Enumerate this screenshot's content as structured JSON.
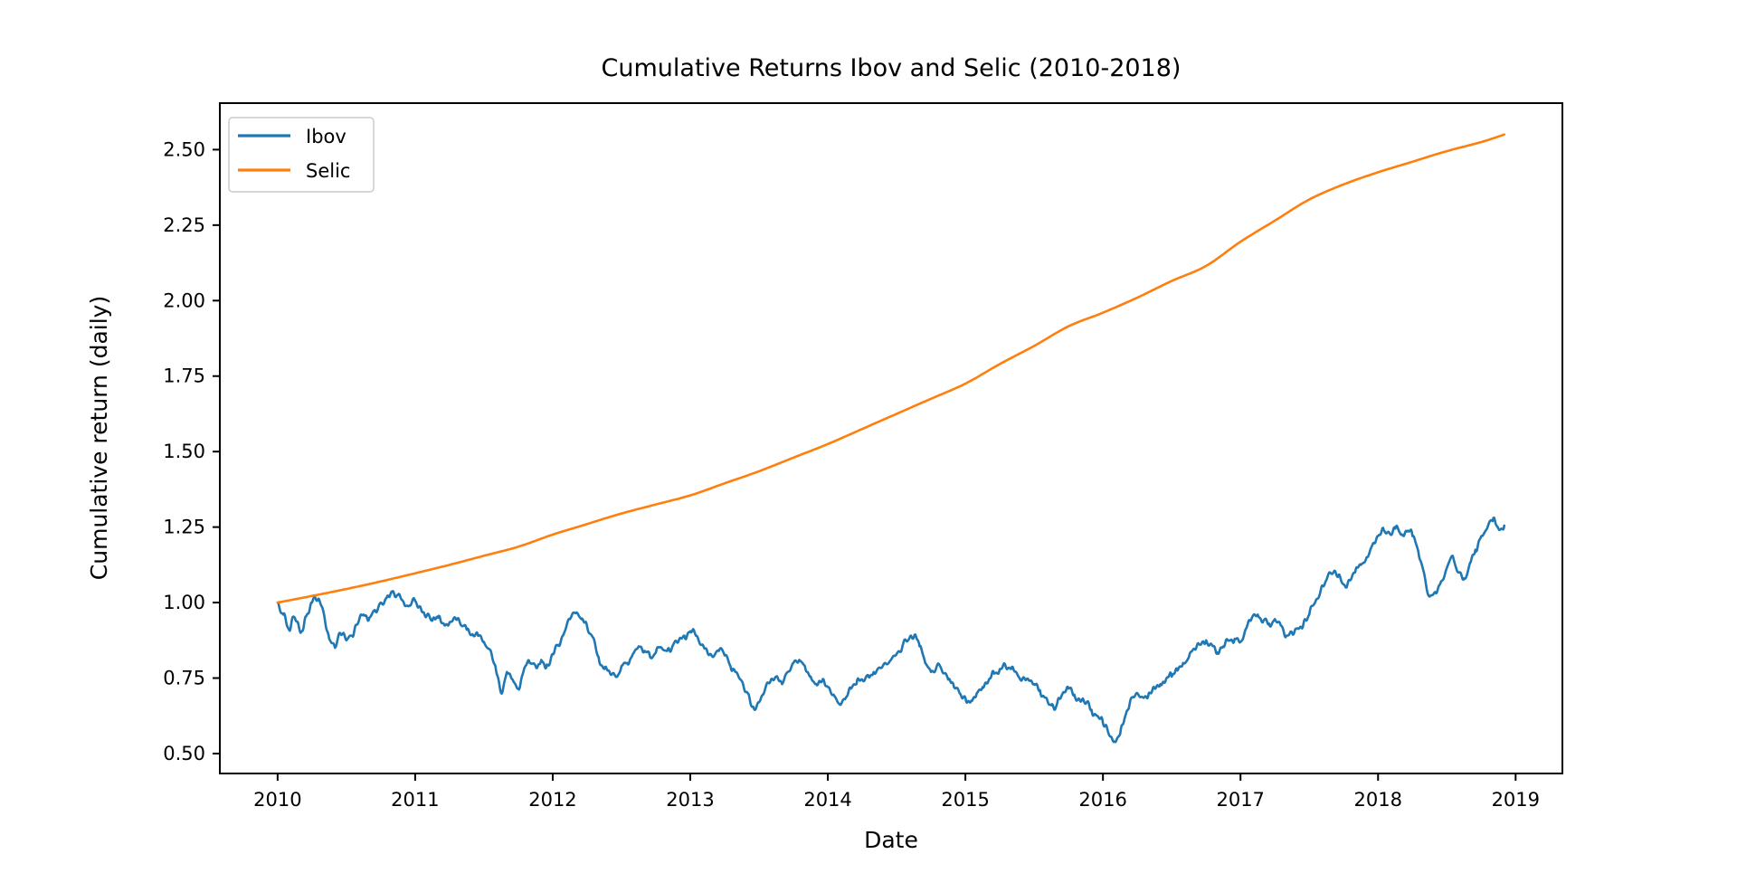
{
  "figure": {
    "background": "#ffffff",
    "spine_color": "#000000"
  },
  "chart_data": {
    "type": "line",
    "title": "Cumulative Returns Ibov and Selic (2010-2018)",
    "xlabel": "Date",
    "ylabel": "Cumulative return (daily)",
    "grid": false,
    "legend_position": "upper left",
    "xlim": [
      2009.58,
      2019.34
    ],
    "ylim": [
      0.434,
      2.654
    ],
    "x_ticks": [
      2010,
      2011,
      2012,
      2013,
      2014,
      2015,
      2016,
      2017,
      2018,
      2019
    ],
    "y_ticks": [
      0.5,
      0.75,
      1.0,
      1.25,
      1.5,
      1.75,
      2.0,
      2.25,
      2.5
    ],
    "series": [
      {
        "name": "Ibov",
        "color": "#1f77b4",
        "style": "noisy-daily",
        "x": [
          2010.0,
          2010.042,
          2010.083,
          2010.125,
          2010.167,
          2010.208,
          2010.25,
          2010.292,
          2010.333,
          2010.375,
          2010.417,
          2010.458,
          2010.5,
          2010.542,
          2010.583,
          2010.625,
          2010.667,
          2010.708,
          2010.75,
          2010.792,
          2010.833,
          2010.875,
          2010.917,
          2010.958,
          2011.0,
          2011.042,
          2011.083,
          2011.125,
          2011.167,
          2011.208,
          2011.25,
          2011.292,
          2011.333,
          2011.375,
          2011.417,
          2011.458,
          2011.5,
          2011.542,
          2011.583,
          2011.625,
          2011.667,
          2011.708,
          2011.75,
          2011.792,
          2011.833,
          2011.875,
          2011.917,
          2011.958,
          2012.0,
          2012.042,
          2012.083,
          2012.125,
          2012.167,
          2012.208,
          2012.25,
          2012.292,
          2012.333,
          2012.375,
          2012.417,
          2012.458,
          2012.5,
          2012.542,
          2012.583,
          2012.625,
          2012.667,
          2012.708,
          2012.75,
          2012.792,
          2012.833,
          2012.875,
          2012.917,
          2012.958,
          2013.0,
          2013.042,
          2013.083,
          2013.125,
          2013.167,
          2013.208,
          2013.25,
          2013.292,
          2013.333,
          2013.375,
          2013.417,
          2013.458,
          2013.5,
          2013.542,
          2013.583,
          2013.625,
          2013.667,
          2013.708,
          2013.75,
          2013.792,
          2013.833,
          2013.875,
          2013.917,
          2013.958,
          2014.0,
          2014.042,
          2014.083,
          2014.125,
          2014.167,
          2014.208,
          2014.25,
          2014.292,
          2014.333,
          2014.375,
          2014.417,
          2014.458,
          2014.5,
          2014.542,
          2014.583,
          2014.625,
          2014.667,
          2014.708,
          2014.75,
          2014.792,
          2014.833,
          2014.875,
          2014.917,
          2014.958,
          2015.0,
          2015.042,
          2015.083,
          2015.125,
          2015.167,
          2015.208,
          2015.25,
          2015.292,
          2015.333,
          2015.375,
          2015.417,
          2015.458,
          2015.5,
          2015.542,
          2015.583,
          2015.625,
          2015.667,
          2015.708,
          2015.75,
          2015.792,
          2015.833,
          2015.875,
          2015.917,
          2015.958,
          2016.0,
          2016.042,
          2016.083,
          2016.125,
          2016.167,
          2016.208,
          2016.25,
          2016.292,
          2016.333,
          2016.375,
          2016.417,
          2016.458,
          2016.5,
          2016.542,
          2016.583,
          2016.625,
          2016.667,
          2016.708,
          2016.75,
          2016.792,
          2016.833,
          2016.875,
          2016.917,
          2016.958,
          2017.0,
          2017.042,
          2017.083,
          2017.125,
          2017.167,
          2017.208,
          2017.25,
          2017.292,
          2017.333,
          2017.375,
          2017.417,
          2017.458,
          2017.5,
          2017.542,
          2017.583,
          2017.625,
          2017.667,
          2017.708,
          2017.75,
          2017.792,
          2017.833,
          2017.875,
          2017.917,
          2017.958,
          2018.0,
          2018.042,
          2018.083,
          2018.125,
          2018.167,
          2018.208,
          2018.25,
          2018.292,
          2018.333,
          2018.375,
          2018.417,
          2018.458,
          2018.5,
          2018.542,
          2018.583,
          2018.625,
          2018.667,
          2018.708,
          2018.75,
          2018.792,
          2018.833,
          2018.875,
          2018.917
        ],
        "y": [
          1.0,
          0.96,
          0.91,
          0.95,
          0.9,
          0.955,
          1.0,
          1.01,
          0.97,
          0.88,
          0.85,
          0.895,
          0.875,
          0.89,
          0.93,
          0.96,
          0.95,
          0.975,
          1.0,
          1.015,
          1.035,
          1.025,
          1.0,
          0.99,
          1.005,
          0.98,
          0.955,
          0.94,
          0.95,
          0.93,
          0.935,
          0.95,
          0.925,
          0.91,
          0.895,
          0.89,
          0.87,
          0.845,
          0.79,
          0.7,
          0.77,
          0.745,
          0.715,
          0.78,
          0.8,
          0.79,
          0.81,
          0.795,
          0.83,
          0.86,
          0.9,
          0.945,
          0.965,
          0.945,
          0.92,
          0.885,
          0.82,
          0.78,
          0.765,
          0.755,
          0.79,
          0.8,
          0.83,
          0.855,
          0.84,
          0.82,
          0.835,
          0.85,
          0.84,
          0.86,
          0.875,
          0.89,
          0.905,
          0.89,
          0.86,
          0.835,
          0.82,
          0.84,
          0.825,
          0.79,
          0.77,
          0.74,
          0.7,
          0.655,
          0.67,
          0.71,
          0.74,
          0.755,
          0.73,
          0.77,
          0.8,
          0.81,
          0.79,
          0.755,
          0.73,
          0.74,
          0.72,
          0.695,
          0.665,
          0.68,
          0.715,
          0.73,
          0.745,
          0.76,
          0.77,
          0.785,
          0.8,
          0.81,
          0.83,
          0.855,
          0.875,
          0.885,
          0.855,
          0.8,
          0.77,
          0.79,
          0.77,
          0.745,
          0.72,
          0.7,
          0.685,
          0.675,
          0.7,
          0.72,
          0.74,
          0.765,
          0.78,
          0.79,
          0.78,
          0.765,
          0.75,
          0.745,
          0.73,
          0.71,
          0.685,
          0.66,
          0.665,
          0.7,
          0.715,
          0.695,
          0.675,
          0.665,
          0.645,
          0.625,
          0.6,
          0.565,
          0.54,
          0.565,
          0.63,
          0.685,
          0.7,
          0.685,
          0.7,
          0.715,
          0.73,
          0.745,
          0.755,
          0.775,
          0.8,
          0.82,
          0.845,
          0.86,
          0.875,
          0.86,
          0.835,
          0.855,
          0.875,
          0.88,
          0.87,
          0.915,
          0.95,
          0.96,
          0.94,
          0.93,
          0.945,
          0.925,
          0.89,
          0.9,
          0.915,
          0.93,
          0.96,
          1.0,
          1.04,
          1.075,
          1.095,
          1.085,
          1.06,
          1.075,
          1.1,
          1.125,
          1.15,
          1.19,
          1.22,
          1.24,
          1.23,
          1.245,
          1.225,
          1.235,
          1.22,
          1.17,
          1.1,
          1.02,
          1.035,
          1.07,
          1.115,
          1.155,
          1.1,
          1.08,
          1.13,
          1.175,
          1.22,
          1.245,
          1.27,
          1.245,
          1.255
        ]
      },
      {
        "name": "Selic",
        "color": "#ff7f0e",
        "style": "smooth",
        "x": [
          2010.0,
          2010.25,
          2010.5,
          2010.75,
          2011.0,
          2011.25,
          2011.5,
          2011.75,
          2012.0,
          2012.25,
          2012.5,
          2012.75,
          2013.0,
          2013.25,
          2013.5,
          2013.75,
          2014.0,
          2014.25,
          2014.5,
          2014.75,
          2015.0,
          2015.25,
          2015.5,
          2015.75,
          2016.0,
          2016.25,
          2016.5,
          2016.75,
          2017.0,
          2017.25,
          2017.5,
          2017.75,
          2018.0,
          2018.25,
          2018.5,
          2018.75,
          2018.917
        ],
        "y": [
          1.0,
          1.022,
          1.045,
          1.07,
          1.097,
          1.125,
          1.155,
          1.185,
          1.225,
          1.26,
          1.295,
          1.325,
          1.355,
          1.395,
          1.435,
          1.48,
          1.525,
          1.575,
          1.625,
          1.675,
          1.725,
          1.79,
          1.85,
          1.915,
          1.96,
          2.01,
          2.065,
          2.115,
          2.195,
          2.265,
          2.335,
          2.385,
          2.425,
          2.46,
          2.495,
          2.525,
          2.55
        ]
      }
    ]
  }
}
